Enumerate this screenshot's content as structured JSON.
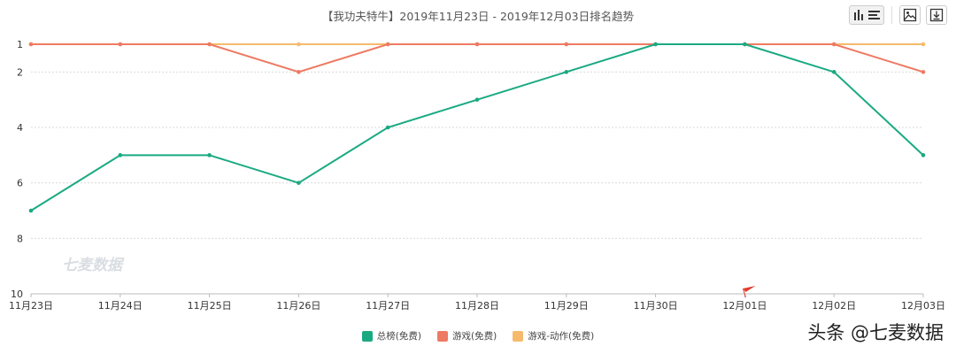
{
  "title": "【我功夫特牛】2019年11月23日 - 2019年12月03日排名趋势",
  "toolbar": {
    "icons": [
      "bar-chart-icon",
      "list-icon",
      "image-save-icon",
      "download-icon"
    ]
  },
  "watermark": "七麦数据",
  "credit": "头条 @七麦数据",
  "chart_data": {
    "type": "line",
    "title": "【我功夫特牛】2019年11月23日 - 2019年12月03日排名趋势",
    "x": [
      "11月23日",
      "11月24日",
      "11月25日",
      "11月26日",
      "11月27日",
      "11月28日",
      "11月29日",
      "11月30日",
      "12月01日",
      "12月02日",
      "12月03日"
    ],
    "y_ticks": [
      1,
      2,
      4,
      6,
      8,
      10
    ],
    "ylim": [
      1,
      10
    ],
    "y_inverted": true,
    "grid": true,
    "legend_position": "bottom",
    "series": [
      {
        "name": "总榜(免费)",
        "color": "#1aaa82",
        "values": [
          7,
          5,
          5,
          6,
          4,
          3,
          2,
          1,
          1,
          2,
          5
        ]
      },
      {
        "name": "游戏(免费)",
        "color": "#ee7a63",
        "values": [
          1,
          1,
          1,
          2,
          1,
          1,
          1,
          1,
          1,
          1,
          2
        ]
      },
      {
        "name": "游戏-动作(免费)",
        "color": "#f5bb6c",
        "values": [
          1,
          1,
          1,
          1,
          1,
          1,
          1,
          1,
          1,
          1,
          1
        ]
      }
    ]
  }
}
